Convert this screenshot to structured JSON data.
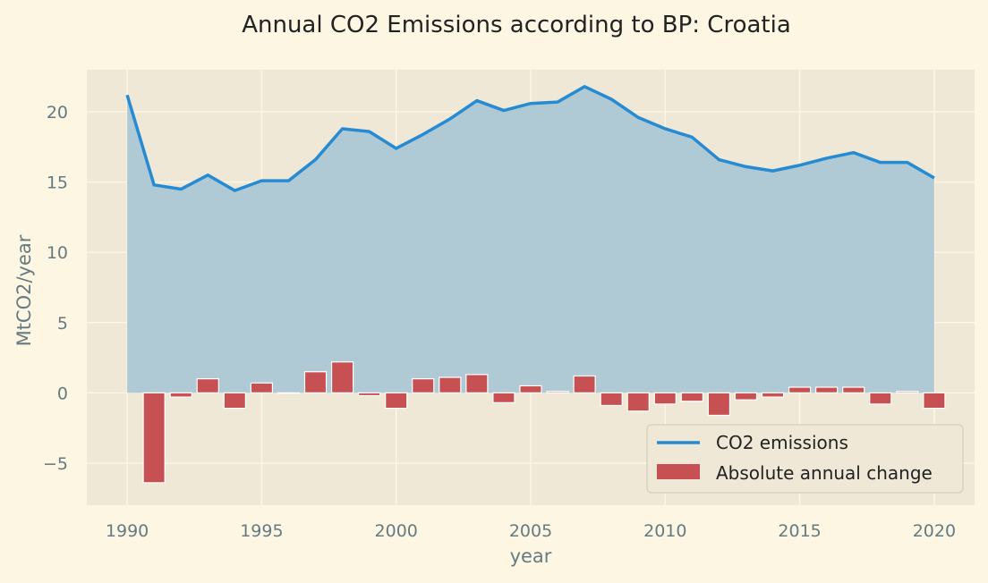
{
  "colors": {
    "page_background": "#fdf6e3",
    "plot_background": "#efe8d6",
    "grid": "#fdf6e3",
    "line": "#268bd2",
    "area": "#afcad4",
    "bar": "#c65052"
  },
  "chart_data": {
    "type": "bar",
    "title": "Annual CO2 Emissions according to BP: Croatia",
    "xlabel": "year",
    "ylabel": "MtCO2/year",
    "xlim": [
      1988.5,
      2021.5
    ],
    "ylim": [
      -8,
      23
    ],
    "xticks": [
      1990,
      1995,
      2000,
      2005,
      2010,
      2015,
      2020
    ],
    "yticks": [
      -5,
      0,
      5,
      10,
      15,
      20
    ],
    "ytick_labels": [
      "−5",
      "0",
      "5",
      "10",
      "15",
      "20"
    ],
    "grid": true,
    "legend_position": "lower-right",
    "x": [
      1990,
      1991,
      1992,
      1993,
      1994,
      1995,
      1996,
      1997,
      1998,
      1999,
      2000,
      2001,
      2002,
      2003,
      2004,
      2005,
      2006,
      2007,
      2008,
      2009,
      2010,
      2011,
      2012,
      2013,
      2014,
      2015,
      2016,
      2017,
      2018,
      2019,
      2020
    ],
    "series": [
      {
        "name": "CO2 emissions",
        "type": "area-line",
        "values": [
          21.2,
          14.8,
          14.5,
          15.5,
          14.4,
          15.1,
          15.1,
          16.6,
          18.8,
          18.6,
          17.4,
          18.4,
          19.5,
          20.8,
          20.1,
          20.6,
          20.7,
          21.8,
          20.9,
          19.6,
          18.8,
          18.2,
          16.6,
          16.1,
          15.8,
          16.2,
          16.7,
          17.1,
          16.4,
          16.4,
          15.3
        ]
      },
      {
        "name": "Absolute annual change",
        "type": "bar",
        "values": [
          null,
          -6.4,
          -0.3,
          1.0,
          -1.1,
          0.7,
          0.0,
          1.5,
          2.2,
          -0.2,
          -1.1,
          1.0,
          1.1,
          1.3,
          -0.7,
          0.5,
          0.1,
          1.2,
          -0.9,
          -1.3,
          -0.8,
          -0.6,
          -1.6,
          -0.5,
          -0.3,
          0.4,
          0.4,
          0.4,
          -0.8,
          0.1,
          -1.1
        ]
      }
    ]
  }
}
